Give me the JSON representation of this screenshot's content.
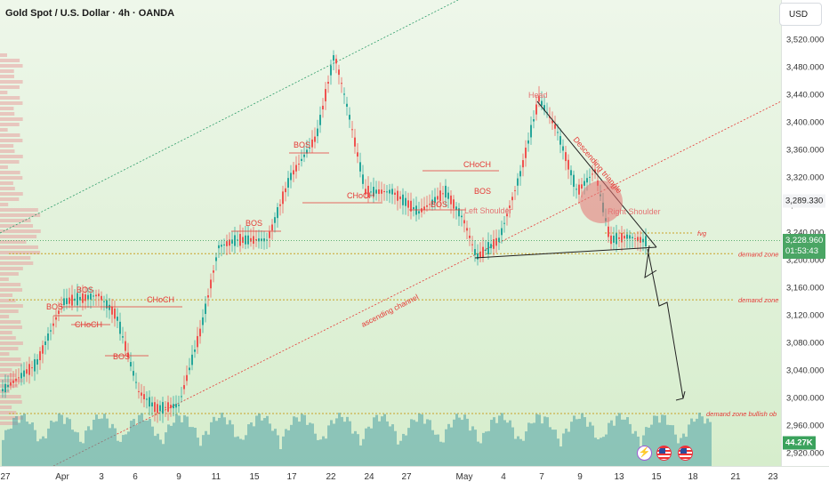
{
  "header": {
    "title": "Gold Spot / U.S. Dollar · 4h · OANDA"
  },
  "currency": "USD",
  "price_tags": {
    "marker_price": "3,289.330",
    "current_price": "3,228.960",
    "countdown": "01:53:43",
    "volume": "44.27K"
  },
  "icons": [
    "lightning-icon",
    "us-flag-icon",
    "us-flag-icon"
  ],
  "colors": {
    "up": "#26a69a",
    "down": "#ef5350",
    "annotation": "#e53935",
    "channel_upper": "#2e9c6a",
    "volume_teal": "#4fa3a5",
    "volume_yellow": "#f6e58d"
  },
  "chart_data": {
    "type": "candlestick",
    "timeframe": "4h",
    "symbol": "Gold Spot / U.S. Dollar",
    "ylim": [
      2900,
      3555
    ],
    "y_ticks": [
      "3,520.000",
      "3,480.000",
      "3,440.000",
      "3,400.000",
      "3,360.000",
      "3,320.000",
      "3,280.000",
      "3,240.000",
      "3,200.000",
      "3,160.000",
      "3,120.000",
      "3,080.000",
      "3,040.000",
      "3,000.000",
      "2,960.000",
      "2,920.000"
    ],
    "x_ticks": [
      "27",
      "Apr",
      "3",
      "6",
      "9",
      "11",
      "15",
      "17",
      "22",
      "24",
      "27",
      "May",
      "4",
      "7",
      "9",
      "13",
      "15",
      "18",
      "21",
      "23"
    ],
    "key_prices": {
      "peak": 3500,
      "head": 3435,
      "neckline_start": 3200,
      "last": 3228.96,
      "projection_target": 2995
    },
    "annotations": {
      "pattern": [
        "Head",
        "Left Shoulder",
        "Right Shoulder",
        "Descending triangle"
      ],
      "structure": [
        "BOS",
        "BOS",
        "CHoCH",
        "BOS",
        "CHoCH",
        "BOS",
        "BOS",
        "CHoCH",
        "BOS",
        "CHoCH",
        "BOS"
      ],
      "channel": "ascending channel",
      "zones": [
        {
          "label": "fvg",
          "price": 3240
        },
        {
          "label": "demand zone",
          "price": 3210
        },
        {
          "label": "demand zone",
          "price": 3143
        },
        {
          "label": "demand zone bullish ob",
          "price": 2978
        }
      ]
    }
  }
}
